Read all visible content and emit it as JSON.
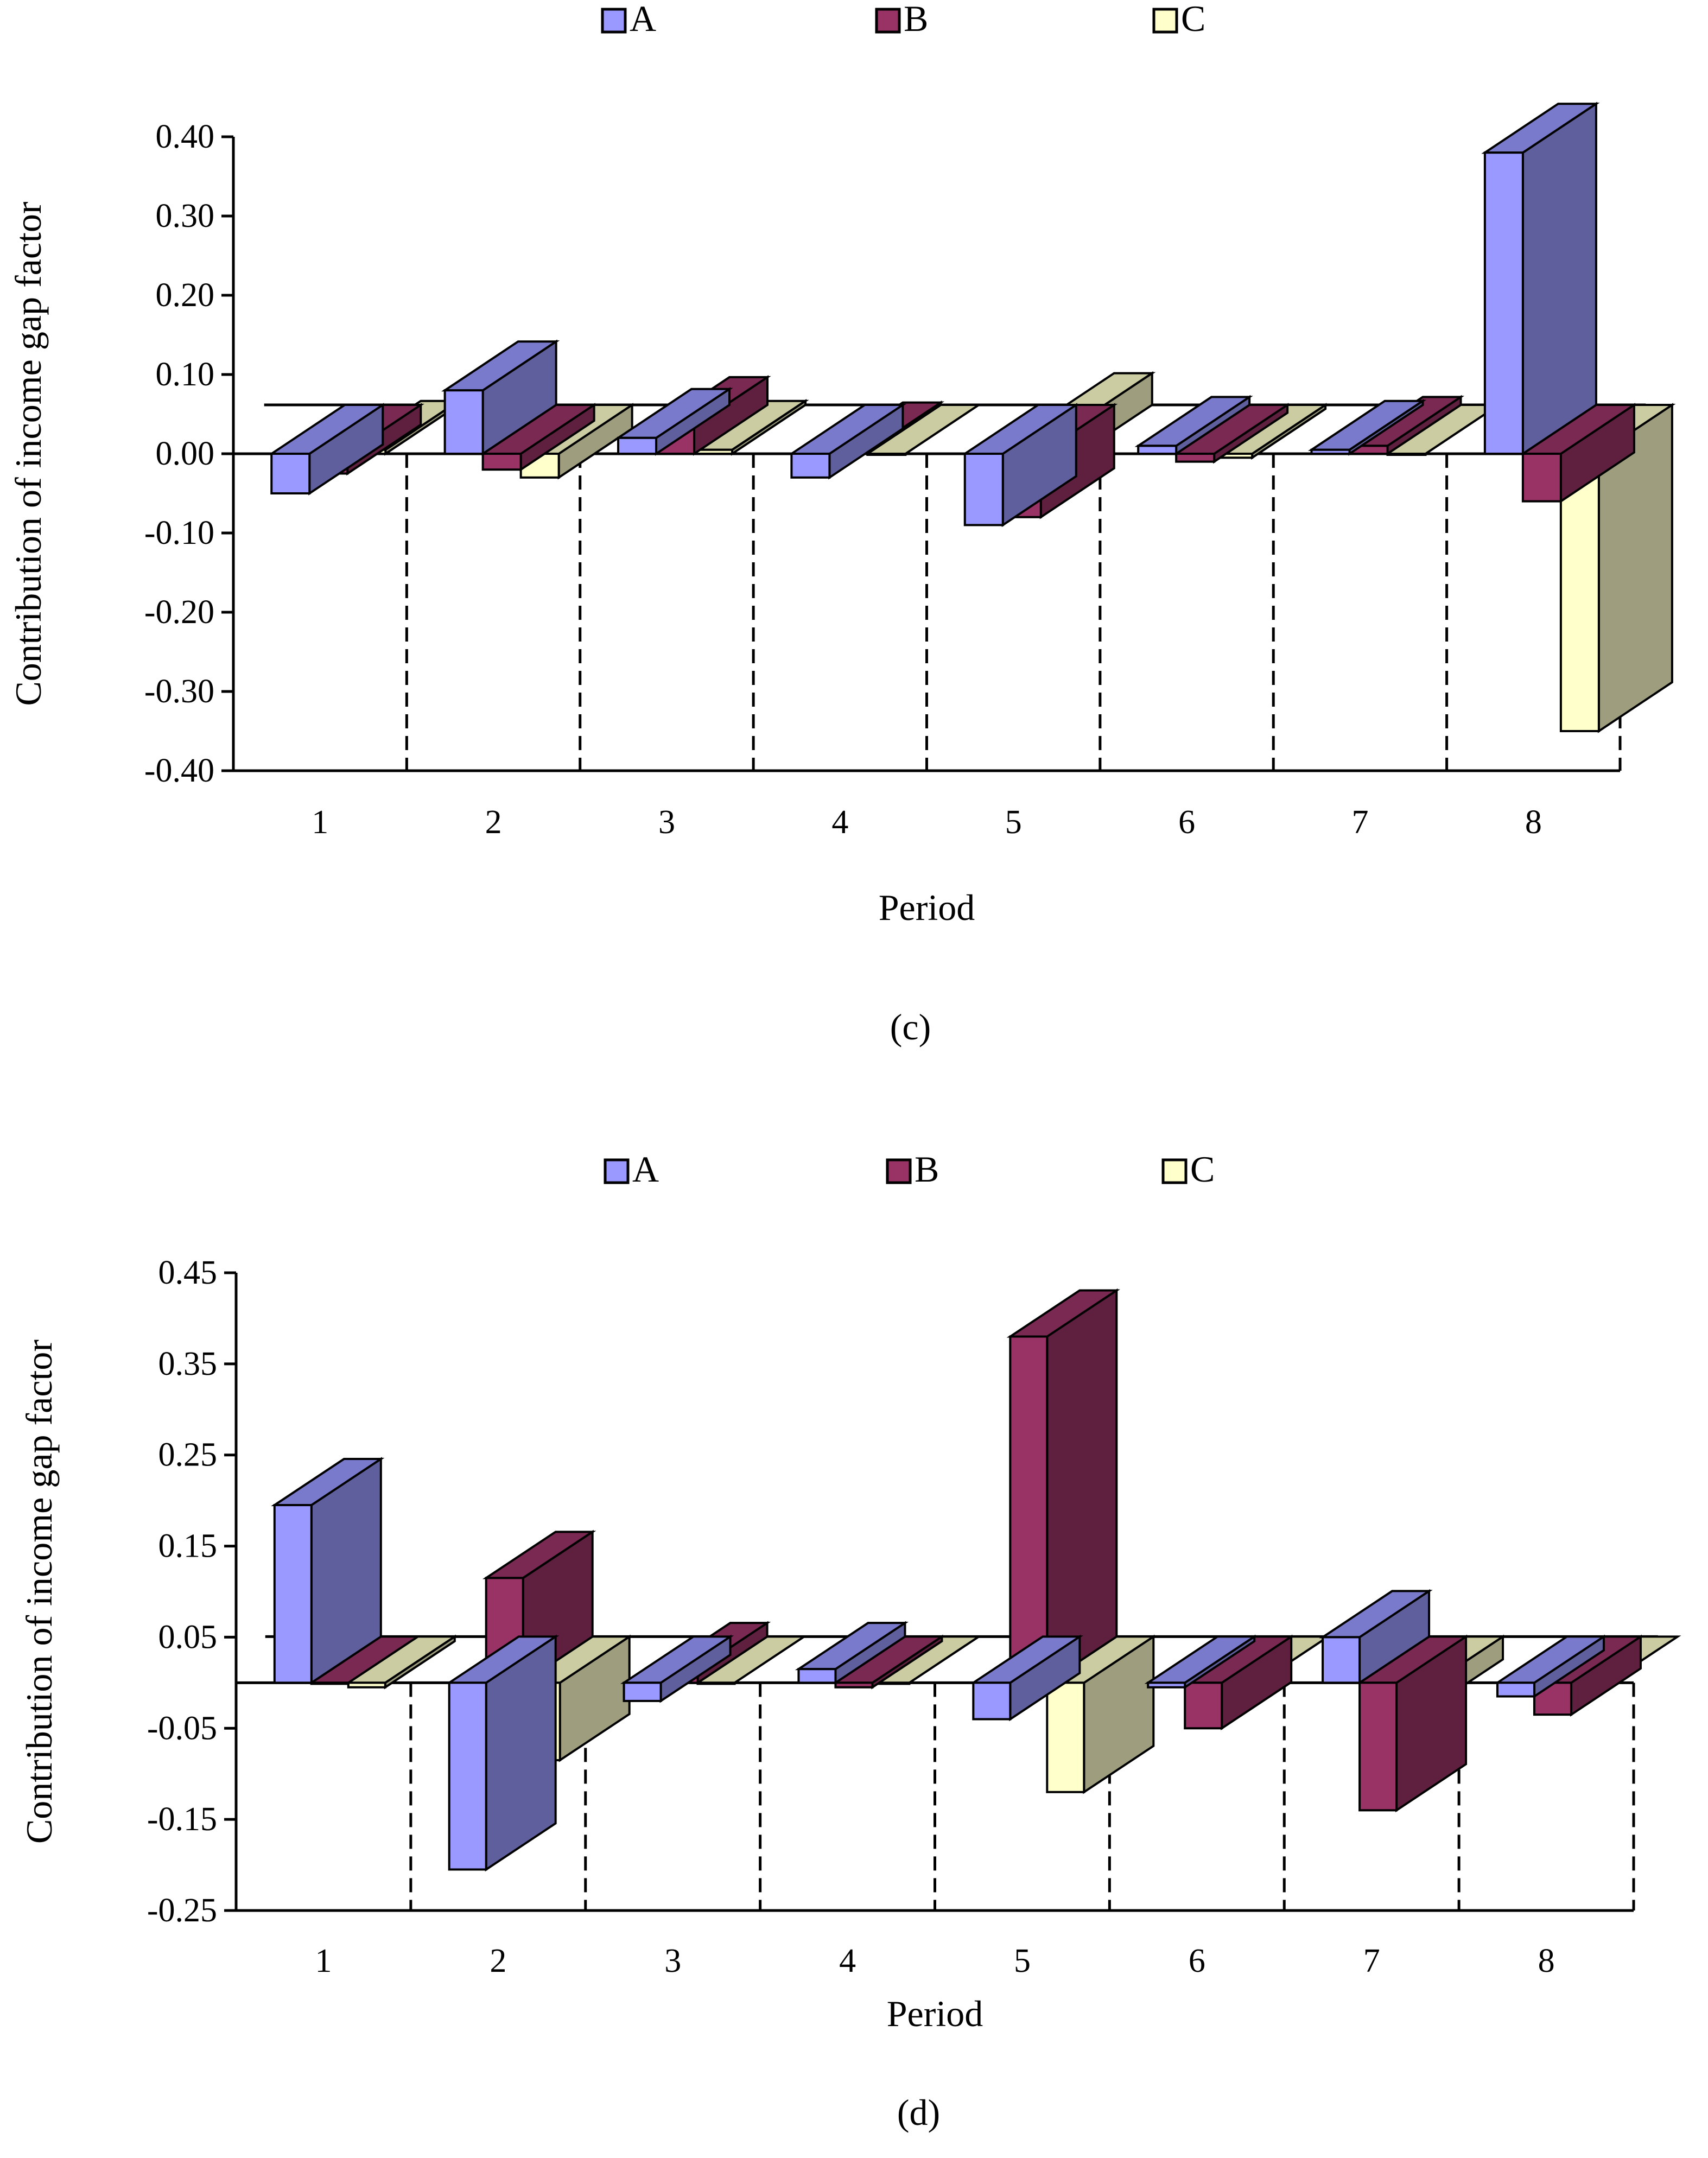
{
  "colors": {
    "A": "#9999ff",
    "B": "#993366",
    "C": "#ffffcc"
  },
  "chart_data": [
    {
      "type": "bar",
      "panel": "(c)",
      "panel_letter": "c",
      "categories": [
        "1",
        "2",
        "3",
        "4",
        "5",
        "6",
        "7",
        "8"
      ],
      "series": [
        {
          "name": "A",
          "values": [
            -0.05,
            0.08,
            0.02,
            -0.03,
            -0.09,
            0.01,
            0.005,
            0.38
          ]
        },
        {
          "name": "B",
          "values": [
            -0.025,
            -0.02,
            0.035,
            0.003,
            -0.08,
            -0.01,
            0.01,
            -0.06
          ]
        },
        {
          "name": "C",
          "values": [
            0.005,
            -0.03,
            0.005,
            0.0,
            0.04,
            -0.005,
            0.0,
            -0.35
          ]
        }
      ],
      "xlabel": "Period",
      "ylabel": "Contribution of income gap factor",
      "ylim": [
        -0.4,
        0.4
      ],
      "yticks": [
        "0.40",
        "0.30",
        "0.20",
        "0.10",
        "0.00",
        "-0.10",
        "-0.20",
        "-0.30",
        "-0.40"
      ],
      "legend": [
        "A",
        "B",
        "C"
      ],
      "legend_position": "top"
    },
    {
      "type": "bar",
      "panel": "(d)",
      "panel_letter": "d",
      "categories": [
        "1",
        "2",
        "3",
        "4",
        "5",
        "6",
        "7",
        "8"
      ],
      "series": [
        {
          "name": "A",
          "values": [
            0.195,
            -0.205,
            -0.02,
            0.015,
            -0.04,
            -0.005,
            0.05,
            -0.015
          ]
        },
        {
          "name": "B",
          "values": [
            0.0,
            0.115,
            0.015,
            -0.005,
            0.38,
            -0.05,
            -0.14,
            -0.035
          ]
        },
        {
          "name": "C",
          "values": [
            -0.005,
            -0.085,
            0.0,
            0.0,
            -0.12,
            0.0,
            -0.025,
            0.0
          ]
        }
      ],
      "xlabel": "Period",
      "ylabel": "Contribution of income gap factor",
      "ylim": [
        -0.25,
        0.45
      ],
      "yticks": [
        "0.45",
        "0.35",
        "0.25",
        "0.15",
        "0.05",
        "-0.05",
        "-0.15",
        "-0.25"
      ],
      "legend": [
        "A",
        "B",
        "C"
      ],
      "legend_position": "top"
    }
  ]
}
